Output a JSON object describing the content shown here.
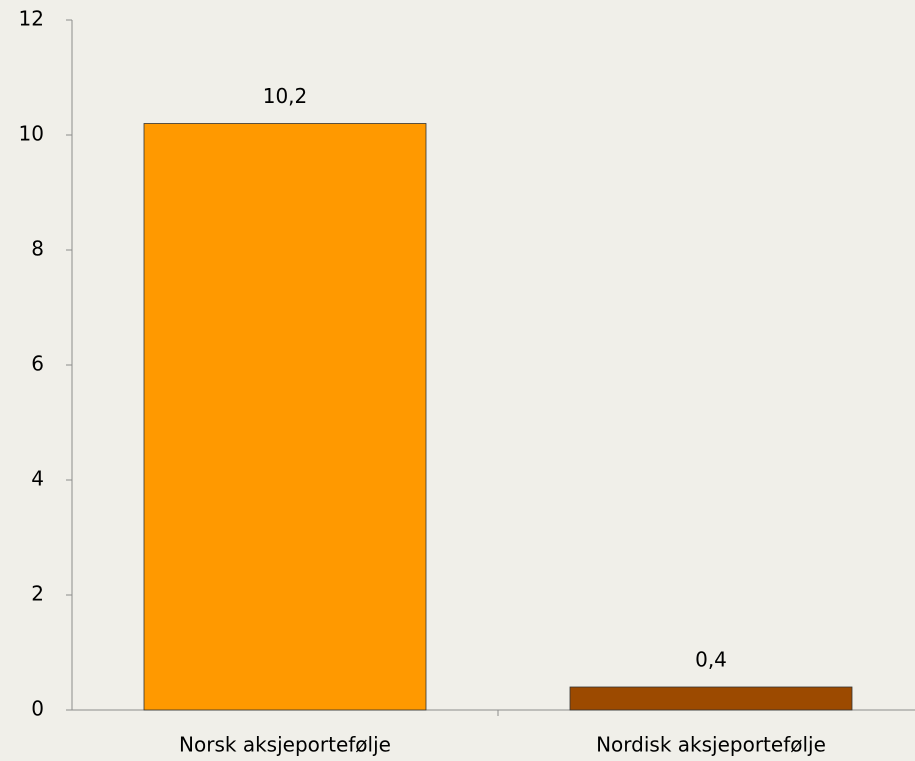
{
  "chart_data": {
    "type": "bar",
    "categories": [
      "Norsk aksjeportefølje",
      "Nordisk aksjeportefølje"
    ],
    "values": [
      10.2,
      0.4
    ],
    "value_labels": [
      "10,2",
      "0,4"
    ],
    "colors": [
      "#ff9900",
      "#9c4a00"
    ],
    "ylim": [
      0,
      12
    ],
    "yticks": [
      0,
      2,
      4,
      6,
      8,
      10,
      12
    ],
    "grid": false
  }
}
